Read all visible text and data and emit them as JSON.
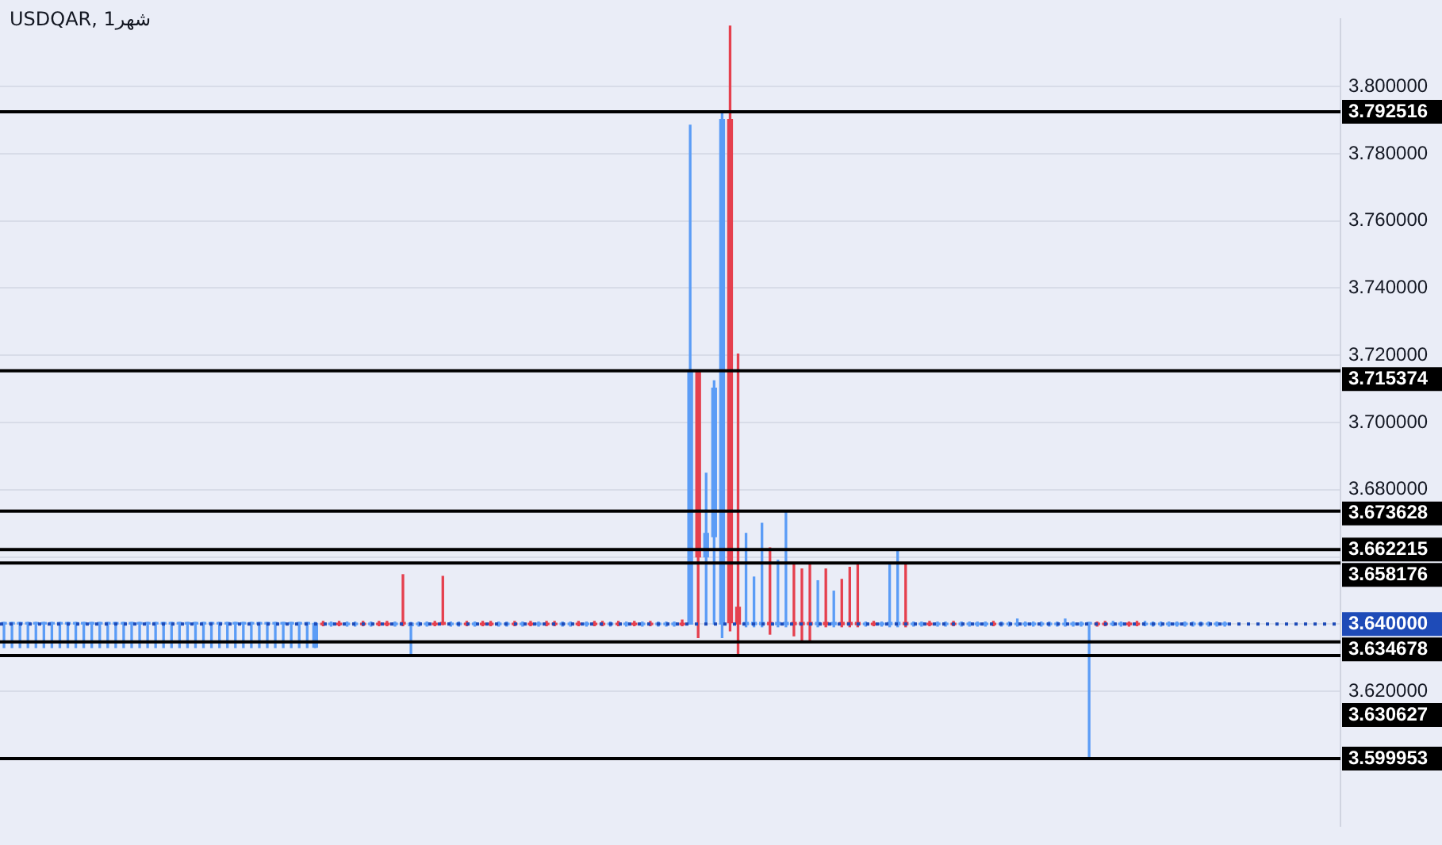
{
  "chart_data": {
    "type": "candlestick",
    "title": "USDQAR, 1شهر",
    "categories": [
      null,
      null,
      null,
      null,
      null,
      null,
      null,
      null,
      null,
      null,
      null,
      null,
      null,
      null,
      null,
      null,
      null,
      null,
      null,
      null,
      null,
      null,
      null,
      null,
      null,
      null,
      null,
      null,
      null,
      null,
      null,
      null,
      null,
      null,
      null,
      null,
      null,
      null,
      null,
      null,
      null,
      null,
      null,
      null,
      null,
      null,
      null,
      null,
      null,
      null,
      null,
      null,
      null,
      null,
      null,
      null,
      null,
      null,
      null,
      null,
      null,
      null,
      null,
      null,
      null,
      null,
      null,
      null,
      null,
      null,
      null,
      null,
      null,
      null,
      null,
      null,
      null,
      null,
      null,
      null,
      null,
      null,
      null,
      null,
      null,
      null,
      null,
      null,
      null,
      null,
      null,
      null,
      null,
      null,
      null,
      null,
      null,
      null,
      null,
      null,
      null,
      null,
      null,
      null,
      null,
      null,
      null,
      null,
      null,
      null,
      null,
      null,
      null,
      null,
      null,
      null,
      null,
      null,
      null,
      null,
      null,
      null,
      null,
      null,
      null,
      null,
      null,
      null,
      null,
      null,
      null,
      null,
      null,
      null,
      null,
      null,
      null,
      null,
      null,
      null,
      null,
      null,
      null,
      null,
      null,
      null,
      null,
      null,
      null,
      null,
      null,
      null,
      null,
      null,
      null,
      null,
      null,
      null,
      null,
      null,
      null,
      null,
      null,
      null,
      null,
      null,
      null,
      null
    ],
    "ohlc": [
      [
        3.64,
        3.6405,
        3.633,
        3.6401
      ],
      [
        3.64,
        3.6405,
        3.633,
        3.6401
      ],
      [
        3.64,
        3.6405,
        3.633,
        3.6401
      ],
      [
        3.64,
        3.6405,
        3.633,
        3.6401
      ],
      [
        3.64,
        3.6405,
        3.633,
        3.6401
      ],
      [
        3.64,
        3.6405,
        3.633,
        3.6401
      ],
      [
        3.64,
        3.6405,
        3.633,
        3.6401
      ],
      [
        3.64,
        3.6405,
        3.633,
        3.6401
      ],
      [
        3.64,
        3.6405,
        3.633,
        3.6401
      ],
      [
        3.64,
        3.6405,
        3.633,
        3.6401
      ],
      [
        3.64,
        3.6405,
        3.633,
        3.6401
      ],
      [
        3.64,
        3.6405,
        3.633,
        3.6401
      ],
      [
        3.64,
        3.6405,
        3.633,
        3.6401
      ],
      [
        3.64,
        3.6405,
        3.633,
        3.6401
      ],
      [
        3.64,
        3.6405,
        3.633,
        3.6401
      ],
      [
        3.64,
        3.6405,
        3.633,
        3.6401
      ],
      [
        3.64,
        3.6405,
        3.633,
        3.6401
      ],
      [
        3.64,
        3.6405,
        3.633,
        3.6401
      ],
      [
        3.64,
        3.6405,
        3.633,
        3.6401
      ],
      [
        3.64,
        3.6405,
        3.633,
        3.6401
      ],
      [
        3.64,
        3.6405,
        3.633,
        3.6401
      ],
      [
        3.64,
        3.6405,
        3.633,
        3.6401
      ],
      [
        3.64,
        3.6405,
        3.633,
        3.6401
      ],
      [
        3.64,
        3.6405,
        3.633,
        3.6401
      ],
      [
        3.64,
        3.6405,
        3.633,
        3.6401
      ],
      [
        3.64,
        3.6405,
        3.633,
        3.6401
      ],
      [
        3.64,
        3.6405,
        3.633,
        3.6401
      ],
      [
        3.64,
        3.6405,
        3.633,
        3.6401
      ],
      [
        3.64,
        3.6405,
        3.633,
        3.6401
      ],
      [
        3.64,
        3.6405,
        3.633,
        3.6401
      ],
      [
        3.64,
        3.6405,
        3.633,
        3.6401
      ],
      [
        3.64,
        3.6405,
        3.633,
        3.6401
      ],
      [
        3.64,
        3.6405,
        3.633,
        3.6401
      ],
      [
        3.64,
        3.6405,
        3.633,
        3.6401
      ],
      [
        3.64,
        3.6405,
        3.633,
        3.6401
      ],
      [
        3.64,
        3.6405,
        3.633,
        3.6401
      ],
      [
        3.64,
        3.6405,
        3.633,
        3.6401
      ],
      [
        3.64,
        3.6405,
        3.633,
        3.6401
      ],
      [
        3.64,
        3.6405,
        3.633,
        3.6401
      ],
      [
        3.6331,
        3.6405,
        3.633,
        3.6402
      ],
      [
        3.6402,
        3.6408,
        3.6395,
        3.6398
      ],
      [
        3.6398,
        3.6406,
        3.6394,
        3.6403
      ],
      [
        3.6402,
        3.6408,
        3.6395,
        3.6398
      ],
      [
        3.6398,
        3.6406,
        3.6394,
        3.6403
      ],
      [
        3.6398,
        3.6406,
        3.6394,
        3.6403
      ],
      [
        3.6402,
        3.6408,
        3.6395,
        3.6398
      ],
      [
        3.6398,
        3.6406,
        3.6394,
        3.6403
      ],
      [
        3.6402,
        3.6408,
        3.6395,
        3.6398
      ],
      [
        3.6402,
        3.6408,
        3.6395,
        3.6398
      ],
      [
        3.6398,
        3.6406,
        3.6394,
        3.6403
      ],
      [
        3.6405,
        3.6547,
        3.6395,
        3.64
      ],
      [
        3.6395,
        3.6405,
        3.6311,
        3.6403
      ],
      [
        3.6398,
        3.6406,
        3.6394,
        3.6403
      ],
      [
        3.6398,
        3.6406,
        3.6394,
        3.6403
      ],
      [
        3.6402,
        3.6408,
        3.6395,
        3.6398
      ],
      [
        3.6405,
        3.6542,
        3.6398,
        3.6399
      ],
      [
        3.6398,
        3.6406,
        3.6394,
        3.6403
      ],
      [
        3.6398,
        3.6406,
        3.6394,
        3.6403
      ],
      [
        3.6402,
        3.6408,
        3.6395,
        3.6398
      ],
      [
        3.6398,
        3.6406,
        3.6394,
        3.6403
      ],
      [
        3.6402,
        3.6408,
        3.6395,
        3.6398
      ],
      [
        3.6402,
        3.6408,
        3.6395,
        3.6398
      ],
      [
        3.6398,
        3.6406,
        3.6394,
        3.6403
      ],
      [
        3.6398,
        3.6406,
        3.6394,
        3.6403
      ],
      [
        3.6402,
        3.6408,
        3.6395,
        3.6398
      ],
      [
        3.6398,
        3.6406,
        3.6394,
        3.6403
      ],
      [
        3.6402,
        3.6408,
        3.6395,
        3.6398
      ],
      [
        3.6398,
        3.6406,
        3.6394,
        3.6403
      ],
      [
        3.6402,
        3.6408,
        3.6395,
        3.6398
      ],
      [
        3.6402,
        3.6408,
        3.6395,
        3.6398
      ],
      [
        3.6398,
        3.6406,
        3.6394,
        3.6403
      ],
      [
        3.6398,
        3.6406,
        3.6394,
        3.6403
      ],
      [
        3.6402,
        3.6408,
        3.6395,
        3.6398
      ],
      [
        3.6398,
        3.6406,
        3.6394,
        3.6403
      ],
      [
        3.6402,
        3.6408,
        3.6395,
        3.6398
      ],
      [
        3.6402,
        3.6408,
        3.6395,
        3.6398
      ],
      [
        3.6398,
        3.6406,
        3.6394,
        3.6403
      ],
      [
        3.6402,
        3.6408,
        3.6395,
        3.6398
      ],
      [
        3.6398,
        3.6406,
        3.6394,
        3.6403
      ],
      [
        3.6402,
        3.6408,
        3.6395,
        3.6398
      ],
      [
        3.6398,
        3.6406,
        3.6394,
        3.6403
      ],
      [
        3.6402,
        3.6408,
        3.6395,
        3.6398
      ],
      [
        3.6398,
        3.6406,
        3.6394,
        3.6403
      ],
      [
        3.6398,
        3.6406,
        3.6394,
        3.6403
      ],
      [
        3.6398,
        3.6406,
        3.6394,
        3.6403
      ],
      [
        3.6402,
        3.6412,
        3.6395,
        3.6398
      ],
      [
        3.64,
        3.7885,
        3.64,
        3.7154
      ],
      [
        3.7154,
        3.7154,
        3.636,
        3.66
      ],
      [
        3.66,
        3.6849,
        3.64,
        3.667
      ],
      [
        3.666,
        3.7124,
        3.64,
        3.7102
      ],
      [
        3.64,
        3.7925,
        3.636,
        3.7902
      ],
      [
        3.7902,
        3.818,
        3.638,
        3.6404
      ],
      [
        3.645,
        3.7204,
        3.6306,
        3.64
      ],
      [
        3.6398,
        3.667,
        3.6392,
        3.6405
      ],
      [
        3.6398,
        3.654,
        3.6392,
        3.6405
      ],
      [
        3.6398,
        3.67,
        3.6392,
        3.6405
      ],
      [
        3.6405,
        3.6627,
        3.637,
        3.6398
      ],
      [
        3.6398,
        3.659,
        3.6392,
        3.6405
      ],
      [
        3.6398,
        3.6736,
        3.6392,
        3.6405
      ],
      [
        3.6405,
        3.6582,
        3.6365,
        3.6398
      ],
      [
        3.6405,
        3.6564,
        3.6347,
        3.6398
      ],
      [
        3.6405,
        3.6577,
        3.6351,
        3.6398
      ],
      [
        3.6398,
        3.6529,
        3.6392,
        3.6405
      ],
      [
        3.6405,
        3.6564,
        3.6392,
        3.6398
      ],
      [
        3.6398,
        3.6498,
        3.6392,
        3.6405
      ],
      [
        3.6405,
        3.6533,
        3.6392,
        3.6398
      ],
      [
        3.6405,
        3.6569,
        3.6392,
        3.6398
      ],
      [
        3.6405,
        3.6582,
        3.6392,
        3.6398
      ],
      [
        3.6398,
        3.6406,
        3.6394,
        3.6403
      ],
      [
        3.6402,
        3.6408,
        3.6395,
        3.6398
      ],
      [
        3.6398,
        3.6406,
        3.6394,
        3.6403
      ],
      [
        3.6398,
        3.6582,
        3.6392,
        3.6405
      ],
      [
        3.6398,
        3.6622,
        3.6392,
        3.6405
      ],
      [
        3.6405,
        3.6578,
        3.6392,
        3.6398
      ],
      [
        3.6398,
        3.6406,
        3.6394,
        3.6403
      ],
      [
        3.6398,
        3.6406,
        3.6394,
        3.6403
      ],
      [
        3.6402,
        3.6408,
        3.6395,
        3.6398
      ],
      [
        3.6398,
        3.6406,
        3.6394,
        3.6403
      ],
      [
        3.6398,
        3.6406,
        3.6394,
        3.6403
      ],
      [
        3.6402,
        3.6408,
        3.6395,
        3.6398
      ],
      [
        3.6398,
        3.6406,
        3.6394,
        3.6403
      ],
      [
        3.6398,
        3.6406,
        3.6394,
        3.6403
      ],
      [
        3.6398,
        3.6406,
        3.6394,
        3.6403
      ],
      [
        3.6398,
        3.6406,
        3.6394,
        3.6403
      ],
      [
        3.6402,
        3.6408,
        3.6395,
        3.6398
      ],
      [
        3.6398,
        3.6406,
        3.6394,
        3.6403
      ],
      [
        3.6398,
        3.6406,
        3.6394,
        3.6403
      ],
      [
        3.6398,
        3.6415,
        3.6394,
        3.6401
      ],
      [
        3.6398,
        3.6406,
        3.6394,
        3.6403
      ],
      [
        3.6398,
        3.6406,
        3.6394,
        3.6403
      ],
      [
        3.6398,
        3.6406,
        3.6394,
        3.6403
      ],
      [
        3.6398,
        3.6406,
        3.6394,
        3.6403
      ],
      [
        3.6398,
        3.6406,
        3.6394,
        3.6403
      ],
      [
        3.6398,
        3.6415,
        3.6394,
        3.6401
      ],
      [
        3.6398,
        3.6406,
        3.6394,
        3.6403
      ],
      [
        3.6398,
        3.6406,
        3.6394,
        3.6403
      ],
      [
        3.64,
        3.6405,
        3.59995,
        3.6401
      ],
      [
        3.6398,
        3.6406,
        3.6394,
        3.6403
      ],
      [
        3.6402,
        3.6408,
        3.6395,
        3.6398
      ],
      [
        3.6402,
        3.6408,
        3.6395,
        3.6398
      ],
      [
        3.6398,
        3.6406,
        3.6394,
        3.6403
      ],
      [
        3.6398,
        3.6406,
        3.6394,
        3.6403
      ],
      [
        3.6402,
        3.6408,
        3.6395,
        3.6398
      ],
      [
        3.6402,
        3.6408,
        3.6395,
        3.6398
      ],
      [
        3.6398,
        3.6406,
        3.6394,
        3.6403
      ],
      [
        3.6398,
        3.6406,
        3.6394,
        3.6403
      ],
      [
        3.6398,
        3.6406,
        3.6394,
        3.6403
      ],
      [
        3.6398,
        3.6406,
        3.6394,
        3.6403
      ],
      [
        3.6398,
        3.6406,
        3.6394,
        3.6403
      ],
      [
        3.6398,
        3.6406,
        3.6394,
        3.6403
      ],
      [
        3.6398,
        3.6406,
        3.6394,
        3.6403
      ],
      [
        3.6398,
        3.6406,
        3.6394,
        3.6403
      ],
      [
        3.6398,
        3.6406,
        3.6394,
        3.6403
      ],
      [
        3.6398,
        3.6406,
        3.6394,
        3.6403
      ],
      null,
      null,
      null,
      null,
      null,
      null,
      null,
      null,
      null,
      null,
      null,
      null,
      null,
      null
    ],
    "colors": [
      "#5b9cf6",
      "#5b9cf6",
      "#5b9cf6",
      "#5b9cf6",
      "#5b9cf6",
      "#5b9cf6",
      "#5b9cf6",
      "#5b9cf6",
      "#5b9cf6",
      "#5b9cf6",
      "#5b9cf6",
      "#5b9cf6",
      "#5b9cf6",
      "#5b9cf6",
      "#5b9cf6",
      "#5b9cf6",
      "#5b9cf6",
      "#5b9cf6",
      "#5b9cf6",
      "#5b9cf6",
      "#5b9cf6",
      "#5b9cf6",
      "#5b9cf6",
      "#5b9cf6",
      "#5b9cf6",
      "#5b9cf6",
      "#5b9cf6",
      "#5b9cf6",
      "#5b9cf6",
      "#5b9cf6",
      "#5b9cf6",
      "#5b9cf6",
      "#5b9cf6",
      "#5b9cf6",
      "#5b9cf6",
      "#5b9cf6",
      "#5b9cf6",
      "#5b9cf6",
      "#5b9cf6",
      "#5b9cf6",
      "#e5404e",
      "#5b9cf6",
      "#e5404e",
      "#5b9cf6",
      "#5b9cf6",
      "#e5404e",
      "#5b9cf6",
      "#e5404e",
      "#e5404e",
      "#5b9cf6",
      "#e5404e",
      "#5b9cf6",
      "#5b9cf6",
      "#5b9cf6",
      "#e5404e",
      "#e5404e",
      "#5b9cf6",
      "#5b9cf6",
      "#e5404e",
      "#5b9cf6",
      "#e5404e",
      "#e5404e",
      "#5b9cf6",
      "#5b9cf6",
      "#e5404e",
      "#5b9cf6",
      "#e5404e",
      "#5b9cf6",
      "#e5404e",
      "#e5404e",
      "#5b9cf6",
      "#5b9cf6",
      "#e5404e",
      "#5b9cf6",
      "#e5404e",
      "#e5404e",
      "#5b9cf6",
      "#e5404e",
      "#5b9cf6",
      "#e5404e",
      "#5b9cf6",
      "#e5404e",
      "#5b9cf6",
      "#5b9cf6",
      "#5b9cf6",
      "#e5404e",
      "#5b9cf6",
      "#e5404e",
      "#5b9cf6",
      "#5b9cf6",
      "#5b9cf6",
      "#e5404e",
      "#e5404e",
      "#5b9cf6",
      "#5b9cf6",
      "#5b9cf6",
      "#e5404e",
      "#5b9cf6",
      "#5b9cf6",
      "#e5404e",
      "#e5404e",
      "#e5404e",
      "#5b9cf6",
      "#e5404e",
      "#5b9cf6",
      "#e5404e",
      "#e5404e",
      "#e5404e",
      "#5b9cf6",
      "#e5404e",
      "#5b9cf6",
      "#5b9cf6",
      "#5b9cf6",
      "#e5404e",
      "#5b9cf6",
      "#5b9cf6",
      "#e5404e",
      "#5b9cf6",
      "#5b9cf6",
      "#e5404e",
      "#5b9cf6",
      "#5b9cf6",
      "#5b9cf6",
      "#5b9cf6",
      "#e5404e",
      "#5b9cf6",
      "#5b9cf6",
      "#5b9cf6",
      "#5b9cf6",
      "#5b9cf6",
      "#5b9cf6",
      "#5b9cf6",
      "#5b9cf6",
      "#5b9cf6",
      "#5b9cf6",
      "#5b9cf6",
      "#5b9cf6",
      "#e5404e",
      "#e5404e",
      "#5b9cf6",
      "#5b9cf6",
      "#e5404e",
      "#e5404e",
      "#5b9cf6",
      "#5b9cf6",
      "#5b9cf6",
      "#5b9cf6",
      "#5b9cf6",
      "#5b9cf6",
      "#5b9cf6",
      "#5b9cf6",
      "#5b9cf6",
      "#5b9cf6",
      "#5b9cf6",
      null,
      null,
      null,
      null,
      null,
      null,
      null,
      null,
      null,
      null,
      null,
      null,
      null,
      null
    ],
    "ylim": [
      3.58,
      3.82
    ],
    "yticks": [
      {
        "value": 3.6,
        "label": null
      },
      {
        "value": 3.62,
        "label": "3.620000"
      },
      {
        "value": 3.64,
        "label": null
      },
      {
        "value": 3.66,
        "label": null
      },
      {
        "value": 3.68,
        "label": "3.680000"
      },
      {
        "value": 3.7,
        "label": "3.700000"
      },
      {
        "value": 3.72,
        "label": "3.720000"
      },
      {
        "value": 3.74,
        "label": "3.740000"
      },
      {
        "value": 3.76,
        "label": "3.760000"
      },
      {
        "value": 3.78,
        "label": "3.780000"
      },
      {
        "value": 3.8,
        "label": "3.800000"
      }
    ],
    "tick_labels": "y",
    "grid": "y",
    "ref_lines": [
      {
        "axis": "y",
        "value": 3.792516,
        "label": "3.792516",
        "color": "#000000"
      },
      {
        "axis": "y",
        "value": 3.715374,
        "label": "3.715374",
        "color": "#000000"
      },
      {
        "axis": "y",
        "value": 3.673628,
        "label": "3.673628",
        "color": "#000000"
      },
      {
        "axis": "y",
        "value": 3.662215,
        "label": "3.662215",
        "color": "#000000"
      },
      {
        "axis": "y",
        "value": 3.658176,
        "label": "3.658176",
        "color": "#000000"
      },
      {
        "axis": "y",
        "value": 3.64,
        "label": "3.640000",
        "color": "#1e4bb8",
        "line_style": "dotted"
      },
      {
        "axis": "y",
        "value": 3.634678,
        "label": "3.634678",
        "color": "#000000"
      },
      {
        "axis": "y",
        "value": 3.630627,
        "label": "3.630627",
        "color": "#000000"
      },
      {
        "axis": "y",
        "value": 3.599953,
        "label": "3.599953",
        "color": "#000000"
      }
    ]
  }
}
